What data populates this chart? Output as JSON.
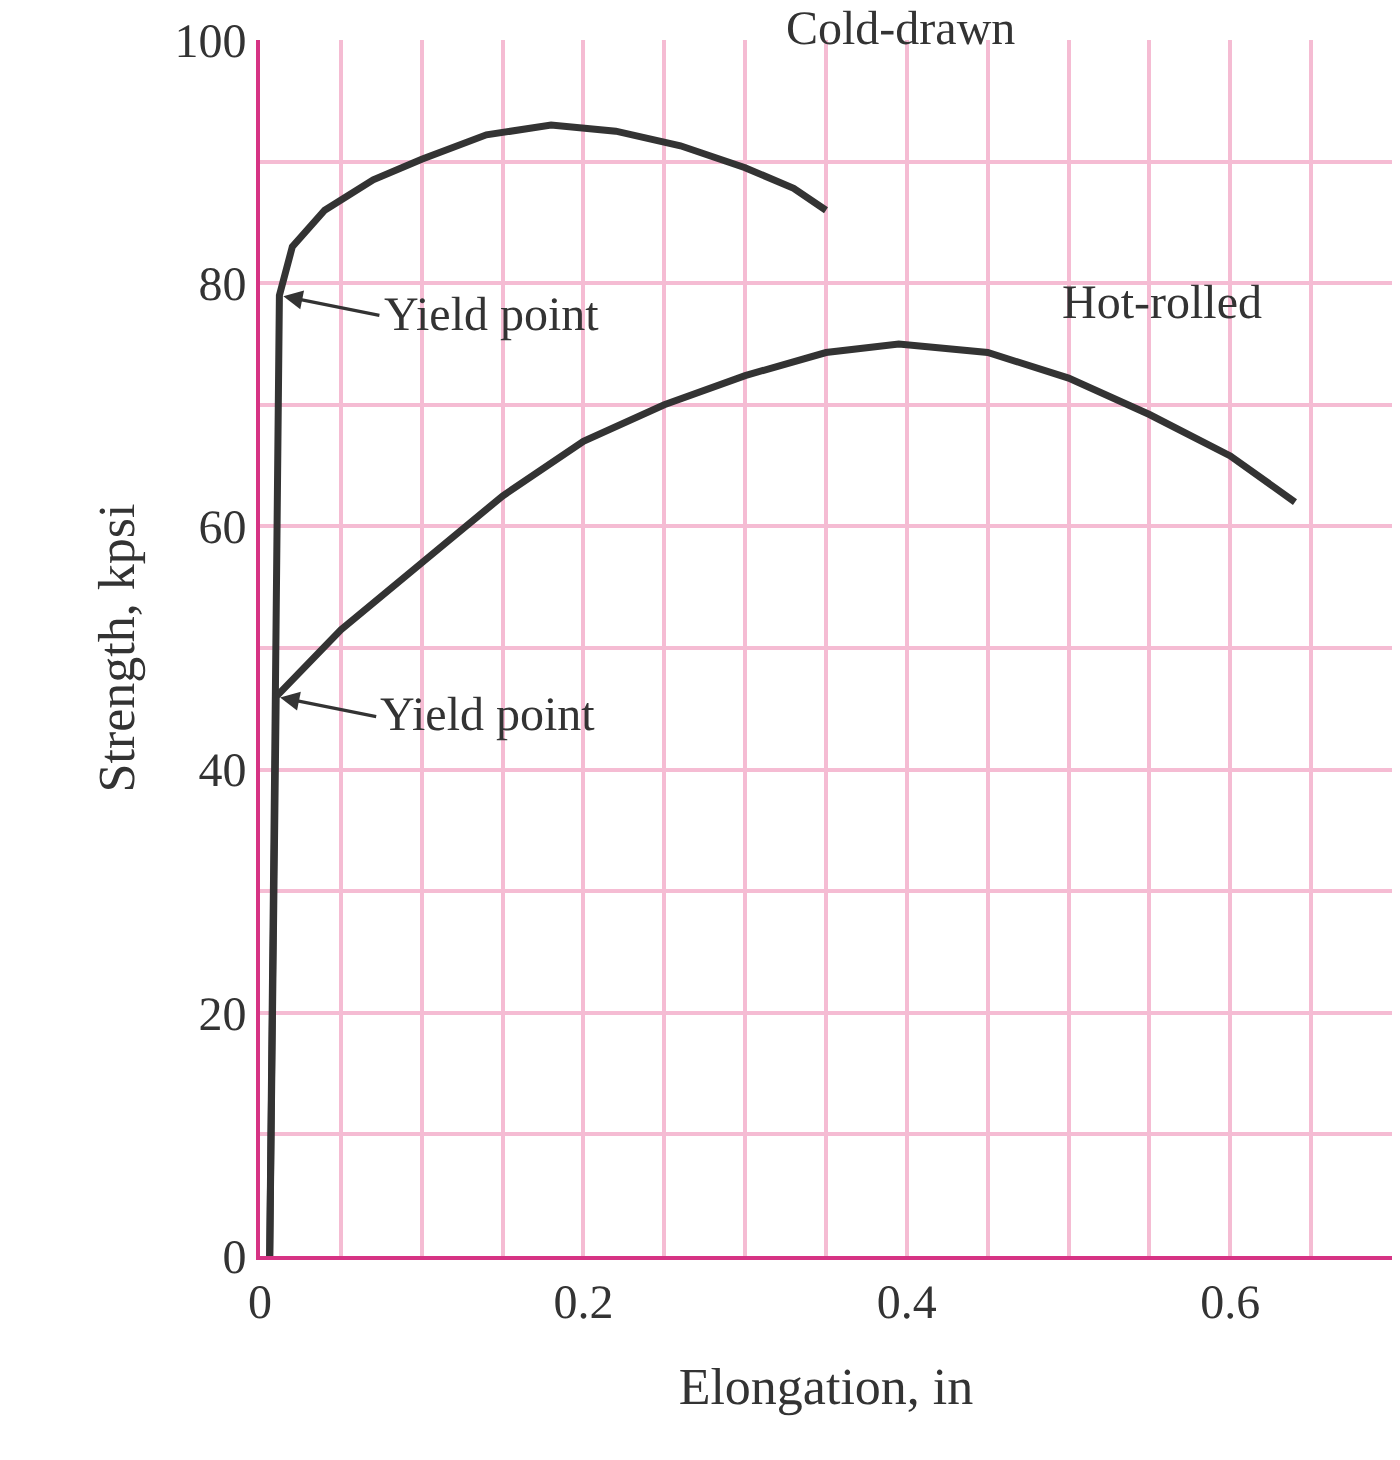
{
  "chart_data": {
    "type": "line",
    "xlabel": "Elongation, in",
    "ylabel": "Strength, kpsi",
    "xlim": [
      0,
      0.7
    ],
    "ylim": [
      0,
      100
    ],
    "xticks": [
      0,
      {
        "value": 0.05,
        "label": null
      },
      {
        "value": 0.1,
        "label": null
      },
      {
        "value": 0.15,
        "label": null
      },
      0.2,
      {
        "value": 0.25,
        "label": null
      },
      {
        "value": 0.3,
        "label": null
      },
      {
        "value": 0.35,
        "label": null
      },
      0.4,
      {
        "value": 0.45,
        "label": null
      },
      {
        "value": 0.5,
        "label": null
      },
      {
        "value": 0.55,
        "label": null
      },
      0.6,
      {
        "value": 0.65,
        "label": null
      }
    ],
    "yticks": [
      0,
      {
        "value": 10,
        "label": null
      },
      20,
      {
        "value": 30,
        "label": null
      },
      40,
      {
        "value": 50,
        "label": null
      },
      60,
      {
        "value": 70,
        "label": null
      },
      80,
      {
        "value": 90,
        "label": null
      },
      100
    ],
    "grid": true,
    "legend": false,
    "marker": "none",
    "line_style": "solid",
    "series": [
      {
        "name": "Cold-drawn",
        "color": "#333333",
        "x": [
          0.006,
          0.012,
          0.02,
          0.04,
          0.07,
          0.1,
          0.14,
          0.18,
          0.22,
          0.26,
          0.3,
          0.33,
          0.35
        ],
        "values": [
          0,
          79,
          83,
          86,
          88.5,
          90.2,
          92.2,
          93,
          92.5,
          91.3,
          89.5,
          87.8,
          86
        ]
      },
      {
        "name": "Hot-rolled",
        "color": "#333333",
        "x": [
          0.006,
          0.01,
          0.05,
          0.1,
          0.15,
          0.2,
          0.25,
          0.3,
          0.35,
          0.395,
          0.45,
          0.5,
          0.55,
          0.6,
          0.64
        ],
        "values": [
          0,
          46,
          51.5,
          57,
          62.5,
          67,
          70,
          72.4,
          74.3,
          75,
          74.3,
          72.2,
          69.2,
          65.8,
          62
        ]
      }
    ],
    "annotations": [
      {
        "text": "Yield point",
        "x": 0.012,
        "y": 79
      },
      {
        "text": "Yield point",
        "x": 0.01,
        "y": 46
      }
    ]
  }
}
